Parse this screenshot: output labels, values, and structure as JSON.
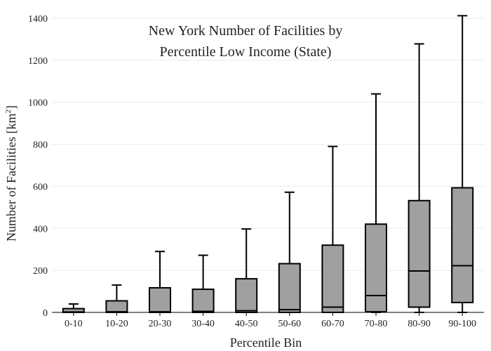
{
  "chart_data": {
    "type": "box",
    "title_lines": [
      "New York Number of Facilities by",
      "Percentile Low Income (State)"
    ],
    "xlabel": "Percentile Bin",
    "ylabel_main": "Number of Facilities  [km",
    "ylabel_sup": "2",
    "ylabel_close": "]",
    "ylim": [
      0,
      1420
    ],
    "yticks": [
      0,
      200,
      400,
      600,
      800,
      1000,
      1200,
      1400
    ],
    "grid": true,
    "box_color": "#a0a0a0",
    "line_color": "#000000",
    "categories": [
      "0-10",
      "10-20",
      "20-30",
      "30-40",
      "40-50",
      "50-60",
      "60-70",
      "70-80",
      "80-90",
      "90-100"
    ],
    "boxes": [
      {
        "min": 0,
        "q1": 0,
        "median": 2,
        "q3": 18,
        "max": 40
      },
      {
        "min": 0,
        "q1": 0,
        "median": 3,
        "q3": 55,
        "max": 130
      },
      {
        "min": 0,
        "q1": 0,
        "median": 3,
        "q3": 117,
        "max": 290
      },
      {
        "min": 0,
        "q1": 0,
        "median": 5,
        "q3": 110,
        "max": 272
      },
      {
        "min": 0,
        "q1": 0,
        "median": 8,
        "q3": 160,
        "max": 397
      },
      {
        "min": 0,
        "q1": 0,
        "median": 13,
        "q3": 232,
        "max": 572
      },
      {
        "min": 0,
        "q1": 0,
        "median": 25,
        "q3": 320,
        "max": 790
      },
      {
        "min": 0,
        "q1": 3,
        "median": 80,
        "q3": 420,
        "max": 1040
      },
      {
        "min": 0,
        "q1": 25,
        "median": 197,
        "q3": 532,
        "max": 1278
      },
      {
        "min": 0,
        "q1": 47,
        "median": 222,
        "q3": 593,
        "max": 1412
      }
    ]
  }
}
